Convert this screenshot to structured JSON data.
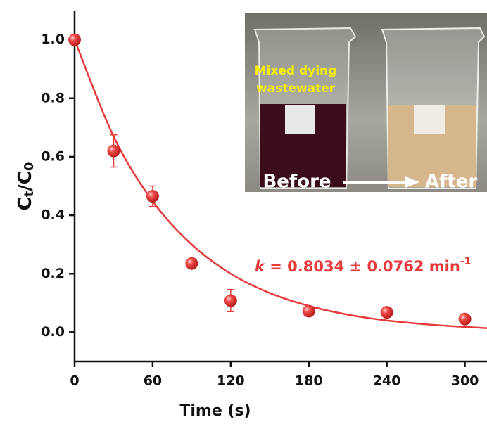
{
  "chart_data": {
    "type": "scatter",
    "xlabel": "Time (s)",
    "ylabel_parts": [
      "C",
      "t",
      "/C",
      "0"
    ],
    "annotation_parts": [
      "k",
      " = 0.8034 ± 0.0762 min",
      "-1"
    ],
    "xlim": [
      0,
      317
    ],
    "ylim": [
      -0.1,
      1.1
    ],
    "xticks": [
      0,
      60,
      120,
      180,
      240,
      300
    ],
    "yticks": [
      {
        "value": 0,
        "label": "0.0"
      },
      0.2,
      0.4,
      0.6,
      0.8,
      {
        "value": 1,
        "label": "1.0"
      }
    ],
    "points": {
      "color": "#e83a3a",
      "x": [
        0,
        30,
        60,
        90,
        120,
        180,
        240,
        300
      ],
      "values": [
        1.0,
        0.62,
        0.465,
        0.235,
        0.108,
        0.072,
        0.068,
        0.045
      ],
      "errors": [
        0.008,
        0.055,
        0.035,
        0.01,
        0.038,
        0.01,
        0.01,
        0.01
      ]
    },
    "fit": {
      "color": "#e83a3a",
      "x": [
        0,
        30,
        60,
        90,
        120,
        150,
        180,
        210,
        240,
        270,
        300,
        317
      ],
      "values": [
        1.0,
        0.669,
        0.448,
        0.3,
        0.2,
        0.134,
        0.09,
        0.06,
        0.04,
        0.027,
        0.018,
        0.014
      ]
    },
    "inset": {
      "caption_lines": [
        "Mixed dying",
        "wastewater"
      ],
      "before": "Before",
      "after": "After"
    }
  }
}
